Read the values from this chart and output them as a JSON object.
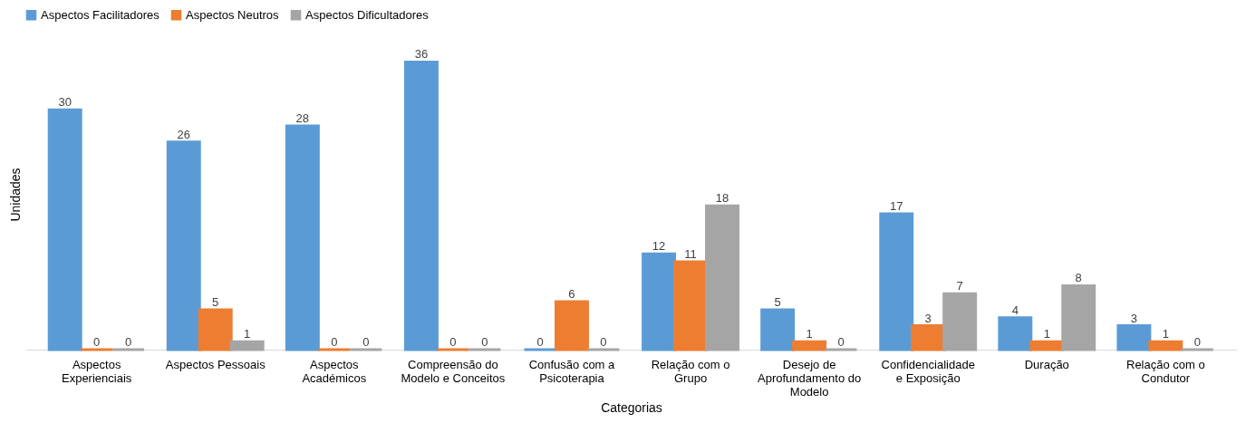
{
  "chart_data": {
    "type": "bar",
    "xlabel": "Categorias",
    "ylabel": "Unidades",
    "categories": [
      "Aspectos Experienciais",
      "Aspectos Pessoais",
      "Aspectos Académicos",
      "Compreensão do Modelo e Conceitos",
      "Confusão com a Psicoterapia",
      "Relação com o Grupo",
      "Desejo de Aprofundamento do Modelo",
      "Confidencialidade e Exposição",
      "Duração",
      "Relação com o Condutor"
    ],
    "series": [
      {
        "name": "Aspectos Facilitadores",
        "color": "#5b9bd5",
        "values": [
          30,
          26,
          28,
          36,
          0,
          12,
          5,
          17,
          4,
          3
        ]
      },
      {
        "name": "Aspectos Neutros",
        "color": "#ed7d31",
        "values": [
          0,
          5,
          0,
          0,
          6,
          11,
          1,
          3,
          1,
          1
        ]
      },
      {
        "name": "Aspectos Dificultadores",
        "color": "#a5a5a5",
        "values": [
          0,
          1,
          0,
          0,
          0,
          18,
          0,
          7,
          8,
          0
        ]
      }
    ],
    "data_labels": true,
    "legend": "top",
    "grid": false,
    "tick_labels": "x"
  }
}
